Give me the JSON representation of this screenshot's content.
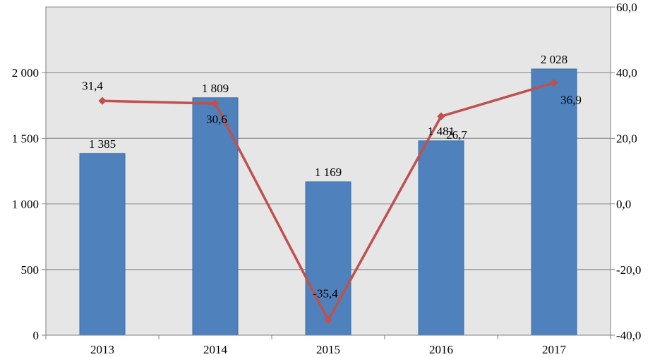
{
  "chart_data": {
    "type": "bar",
    "categories": [
      "2013",
      "2014",
      "2015",
      "2016",
      "2017"
    ],
    "series": [
      {
        "type": "bar",
        "axis": "left",
        "values": [
          1385,
          1809,
          1169,
          1481,
          2028
        ],
        "labels": [
          "1 385",
          "1 809",
          "1 169",
          "1 481",
          "2 028"
        ],
        "color": "#4f81bd"
      },
      {
        "type": "line",
        "axis": "right",
        "values": [
          31.4,
          30.6,
          -35.4,
          26.7,
          36.9
        ],
        "labels": [
          "31,4",
          "30,6",
          "-35,4",
          "26,7",
          "36,9"
        ],
        "color": "#c0504d"
      }
    ],
    "ylim_left": [
      0,
      2500
    ],
    "yticks_left": [
      {
        "value": 0,
        "label": "0"
      },
      {
        "value": 500,
        "label": "500"
      },
      {
        "value": 1000,
        "label": "1 000"
      },
      {
        "value": 1500,
        "label": "1 500"
      },
      {
        "value": 2000,
        "label": "2 000"
      }
    ],
    "ylim_right": [
      -40,
      60
    ],
    "yticks_right": [
      {
        "value": -40,
        "label": "-40,0"
      },
      {
        "value": -20,
        "label": "-20,0"
      },
      {
        "value": 0,
        "label": "0,0"
      },
      {
        "value": 20,
        "label": "20,0"
      },
      {
        "value": 40,
        "label": "40,0"
      },
      {
        "value": 60,
        "label": "60,0"
      }
    ],
    "grid": true,
    "legend": "none",
    "plot_background": "#e6e6e6"
  }
}
